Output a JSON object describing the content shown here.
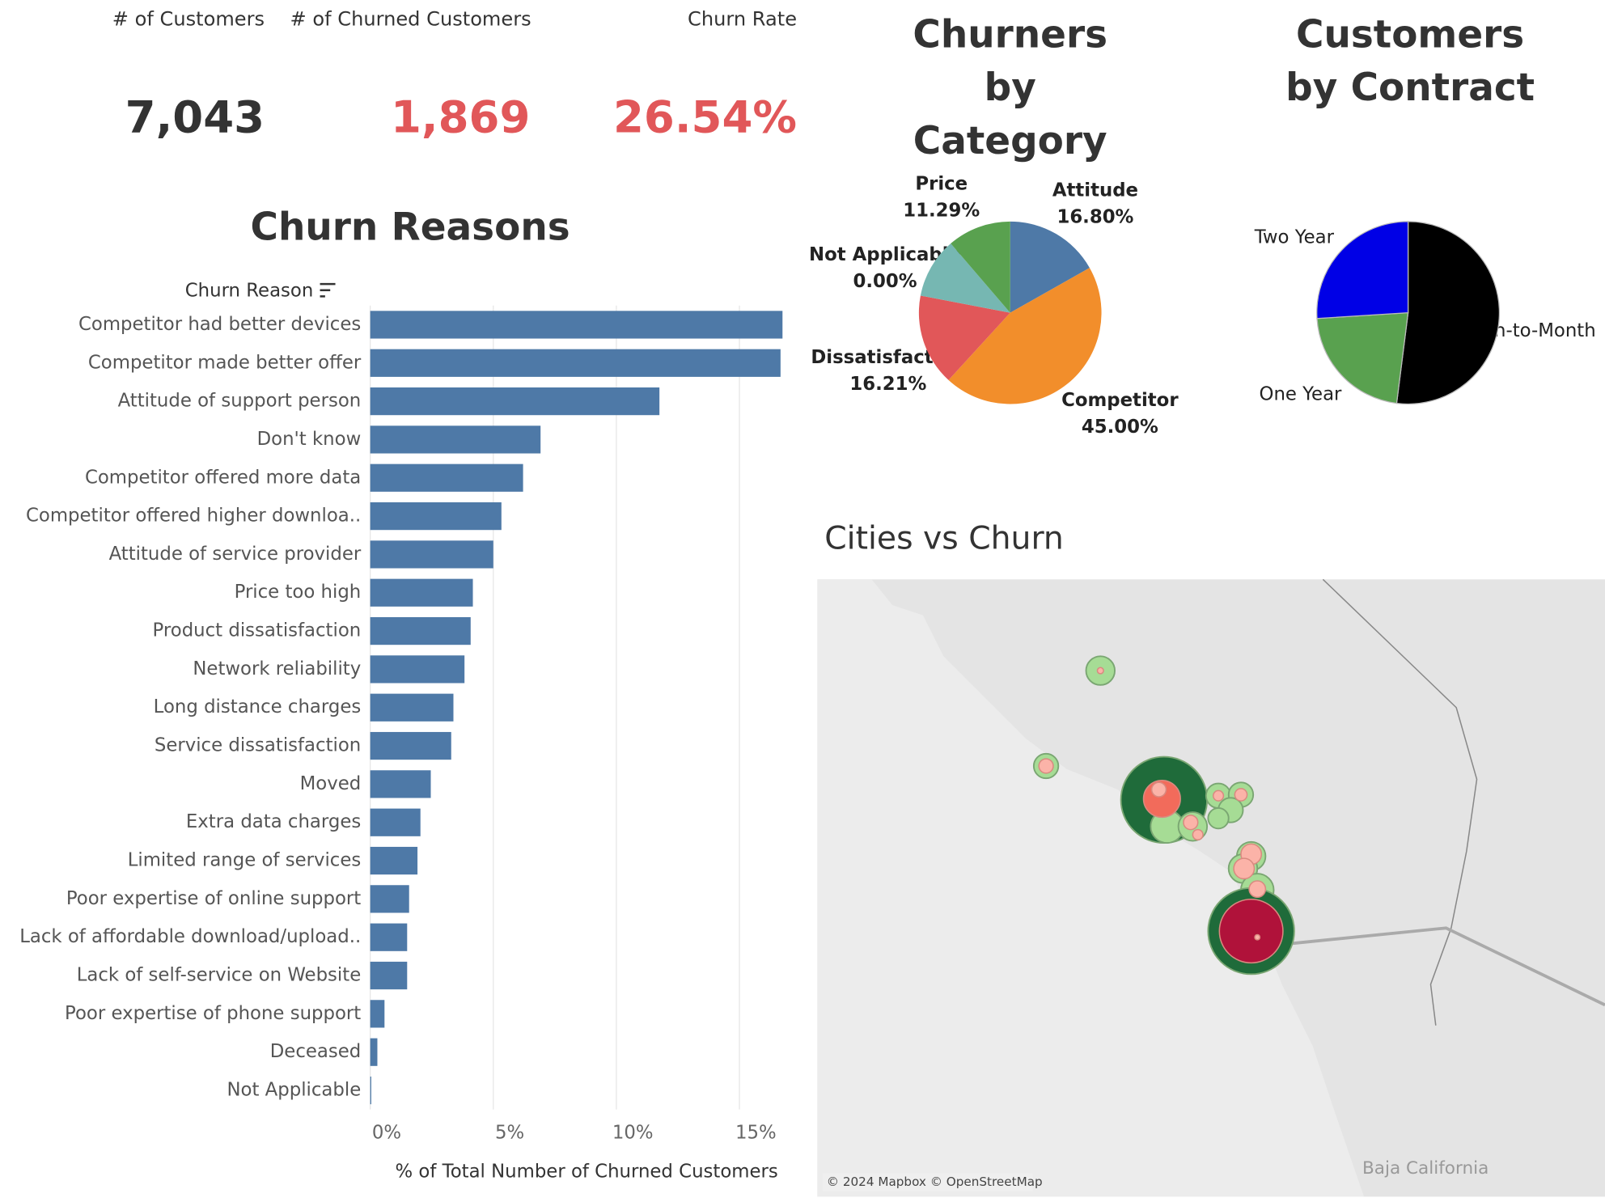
{
  "kpis": [
    {
      "label": "# of Customers",
      "value": "7,043"
    },
    {
      "label": "# of Churned Customers",
      "value": "1,869"
    },
    {
      "label": "Churn Rate",
      "value": "26.54%"
    }
  ],
  "chart_data": [
    {
      "type": "bar",
      "title": "Churn Reasons",
      "y_label": "Churn Reason",
      "x_label": "% of Total Number of Churned Customers",
      "color": "#4e79a7",
      "grid": true,
      "categories": [
        "Competitor had better devices",
        "Competitor made better offer",
        "Attitude of support person",
        "Don't know",
        "Competitor offered more data",
        "Competitor offered higher downloa..",
        "Attitude of service provider",
        "Price too high",
        "Product dissatisfaction",
        "Network reliability",
        "Long distance charges",
        "Service dissatisfaction",
        "Moved",
        "Extra data charges",
        "Limited range of services",
        "Poor expertise of online support",
        "Lack of affordable download/upload..",
        "Lack of self-service on Website",
        "Poor expertise of phone support",
        "Deceased",
        "Not Applicable"
      ],
      "values": [
        16.75,
        16.67,
        11.75,
        6.92,
        6.21,
        5.33,
        5.0,
        4.17,
        4.08,
        3.83,
        3.38,
        3.29,
        2.46,
        2.04,
        1.92,
        1.58,
        1.5,
        1.5,
        0.58,
        0.29,
        0.02
      ],
      "xlim": [
        0,
        17.6
      ],
      "xticks": [
        {
          "value": 0,
          "label": "0%"
        },
        {
          "value": 5,
          "label": "5%"
        },
        {
          "value": 10,
          "label": "10%"
        },
        {
          "value": 15,
          "label": "15%"
        }
      ]
    },
    {
      "type": "pie",
      "title": "Churners by Category",
      "categories": [
        "Attitude",
        "Competitor",
        "Dissatisfaction",
        "Not Applicable",
        null,
        "Price"
      ],
      "values": [
        16.8,
        45.0,
        16.21,
        0.0,
        10.7,
        11.29
      ],
      "value_labels": [
        "16.80%",
        "45.00%",
        "16.21%",
        "0.00%",
        null,
        "11.29%"
      ],
      "colors": [
        "#4e79a7",
        "#f28e2b",
        "#e15759",
        "#edc948",
        "#76b7b2",
        "#59a14f"
      ]
    },
    {
      "type": "pie",
      "title": "Customers by Contract",
      "categories": [
        "Month-to-Month",
        "One Year",
        "Two Year"
      ],
      "values": [
        52,
        22,
        26
      ],
      "colors": [
        "#000000",
        "#59a14f",
        "#0000e6"
      ]
    }
  ],
  "map": {
    "title": "Cities vs Churn",
    "attribution": "© 2024 Mapbox © OpenStreetMap",
    "region_label": "Baja California"
  }
}
